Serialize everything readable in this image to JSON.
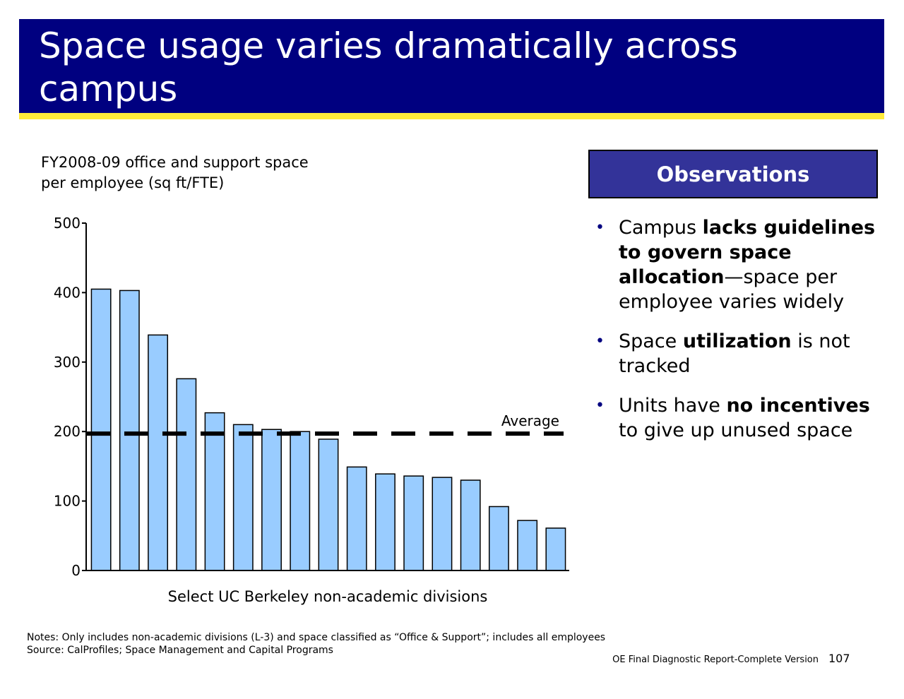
{
  "title": "Space usage varies dramatically across campus",
  "chart_data": {
    "type": "bar",
    "title": "FY2008-09 office and support space per employee (sq ft/FTE)",
    "xlabel": "Select UC Berkeley non-academic divisions",
    "ylabel": "",
    "ylim": [
      0,
      500
    ],
    "yticks": [
      "0",
      "100",
      "200",
      "300",
      "400",
      "500"
    ],
    "values": [
      405,
      403,
      339,
      276,
      227,
      210,
      203,
      200,
      189,
      149,
      139,
      136,
      134,
      130,
      92,
      72,
      61
    ],
    "average": 197,
    "average_label": "Average",
    "bar_color": "#99ccff",
    "average_color": "#000000"
  },
  "observations": {
    "header": "Observations",
    "items": [
      {
        "pre": "Campus ",
        "bold": "lacks guidelines to govern space allocation",
        "post": "—space per employee varies widely"
      },
      {
        "pre": "Space ",
        "bold": "utilization",
        "post": " is not tracked"
      },
      {
        "pre": "Units have ",
        "bold": "no incentives",
        "post": " to give up unused space"
      }
    ]
  },
  "notes": {
    "line1": "Notes: Only includes non-academic divisions (L-3) and space classified as “Office & Support”; includes all employees",
    "line2": "Source: CalProfiles; Space Management and Capital Programs"
  },
  "footer": {
    "report": "OE Final Diagnostic Report-Complete Version",
    "page": "107"
  },
  "colors": {
    "title_bg": "#000080",
    "title_rule": "#ffeb3b",
    "obs_header_bg": "#333399"
  }
}
